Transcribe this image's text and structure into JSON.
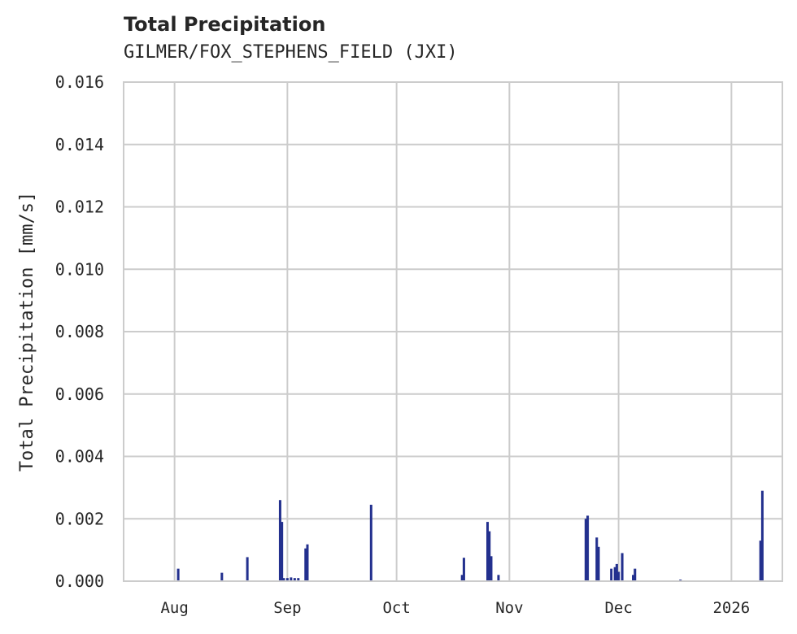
{
  "header": {
    "title": "Total Precipitation",
    "subtitle": "GILMER/FOX_STEPHENS_FIELD (JXI)"
  },
  "axes": {
    "ylabel": "Total Precipitation [mm/s]",
    "yticks": [
      "0.000",
      "0.002",
      "0.004",
      "0.006",
      "0.008",
      "0.010",
      "0.012",
      "0.014",
      "0.016"
    ],
    "xticks": [
      "Aug",
      "Sep",
      "Oct",
      "Nov",
      "Dec",
      "2026"
    ]
  },
  "colors": {
    "bar": "#23308e",
    "grid": "#cccccc",
    "text": "#262626"
  },
  "chart_data": {
    "type": "bar",
    "title": "Total Precipitation",
    "subtitle": "GILMER/FOX_STEPHENS_FIELD (JXI)",
    "xlabel": "",
    "ylabel": "Total Precipitation [mm/s]",
    "ylim": [
      0,
      0.016
    ],
    "grid": true,
    "legend": null,
    "x_tick_labels": [
      "Aug",
      "Sep",
      "Oct",
      "Nov",
      "Dec",
      "2026"
    ],
    "x_tick_dates": [
      "2025-08-01",
      "2025-09-01",
      "2025-10-01",
      "2025-11-01",
      "2025-12-01",
      "2026-01-01"
    ],
    "x_range": [
      "2025-07-18",
      "2026-01-15"
    ],
    "series": [
      {
        "name": "Total Precipitation",
        "points": [
          {
            "date": "2025-08-02",
            "value": 0.0004
          },
          {
            "date": "2025-08-14",
            "value": 0.00027
          },
          {
            "date": "2025-08-21",
            "value": 0.00077
          },
          {
            "date": "2025-08-30",
            "value": 0.0026
          },
          {
            "date": "2025-08-30T12",
            "value": 0.0019
          },
          {
            "date": "2025-08-31",
            "value": 0.0001
          },
          {
            "date": "2025-09-01",
            "value": 0.0001
          },
          {
            "date": "2025-09-02",
            "value": 0.00012
          },
          {
            "date": "2025-09-03",
            "value": 0.0001
          },
          {
            "date": "2025-09-04",
            "value": 0.0001
          },
          {
            "date": "2025-09-06",
            "value": 0.00105
          },
          {
            "date": "2025-09-06T12",
            "value": 0.00118
          },
          {
            "date": "2025-09-24",
            "value": 0.00245
          },
          {
            "date": "2025-10-19",
            "value": 0.0002
          },
          {
            "date": "2025-10-19T12",
            "value": 0.00075
          },
          {
            "date": "2025-10-26",
            "value": 0.0019
          },
          {
            "date": "2025-10-26T12",
            "value": 0.0016
          },
          {
            "date": "2025-10-27",
            "value": 0.0008
          },
          {
            "date": "2025-10-29",
            "value": 0.0002
          },
          {
            "date": "2025-11-22",
            "value": 0.002
          },
          {
            "date": "2025-11-22T12",
            "value": 0.0021
          },
          {
            "date": "2025-11-25",
            "value": 0.0014
          },
          {
            "date": "2025-11-25T12",
            "value": 0.0011
          },
          {
            "date": "2025-11-29",
            "value": 0.0004
          },
          {
            "date": "2025-11-30",
            "value": 0.00045
          },
          {
            "date": "2025-11-30T12",
            "value": 0.00055
          },
          {
            "date": "2025-12-01",
            "value": 0.0003
          },
          {
            "date": "2025-12-02",
            "value": 0.0009
          },
          {
            "date": "2025-12-05",
            "value": 0.0002
          },
          {
            "date": "2025-12-05T12",
            "value": 0.0004
          },
          {
            "date": "2025-12-18",
            "value": 5e-05
          },
          {
            "date": "2026-01-09",
            "value": 0.0013
          },
          {
            "date": "2026-01-09T12",
            "value": 0.0029
          }
        ]
      }
    ]
  }
}
